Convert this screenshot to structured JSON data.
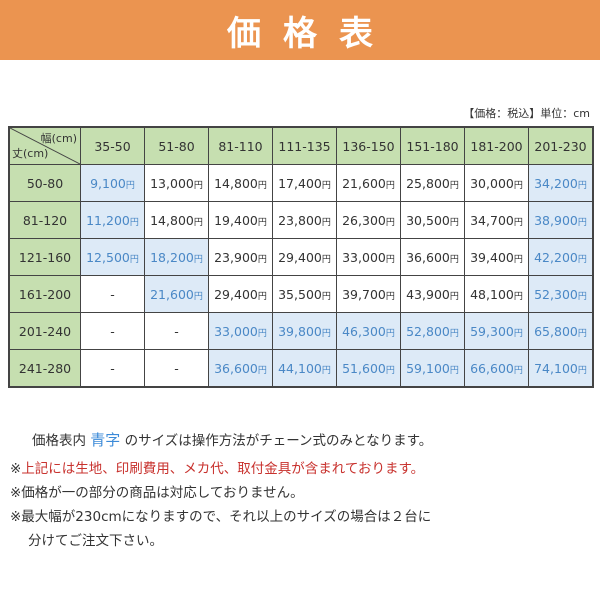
{
  "banner": {
    "title": "価格表"
  },
  "unit_note": "【価格：税込】単位：cm",
  "table": {
    "corner": {
      "width_label": "幅(cm)",
      "height_label": "丈(cm)"
    },
    "columns": [
      "35-50",
      "51-80",
      "81-110",
      "111-135",
      "136-150",
      "151-180",
      "181-200",
      "201-230"
    ],
    "currency": "円",
    "rows": [
      {
        "label": "50-80",
        "cells": [
          {
            "v": "9,100",
            "blue": true
          },
          {
            "v": "13,000",
            "blue": false
          },
          {
            "v": "14,800",
            "blue": false
          },
          {
            "v": "17,400",
            "blue": false
          },
          {
            "v": "21,600",
            "blue": false
          },
          {
            "v": "25,800",
            "blue": false
          },
          {
            "v": "30,000",
            "blue": false
          },
          {
            "v": "34,200",
            "blue": true
          }
        ]
      },
      {
        "label": "81-120",
        "cells": [
          {
            "v": "11,200",
            "blue": true
          },
          {
            "v": "14,800",
            "blue": false
          },
          {
            "v": "19,400",
            "blue": false
          },
          {
            "v": "23,800",
            "blue": false
          },
          {
            "v": "26,300",
            "blue": false
          },
          {
            "v": "30,500",
            "blue": false
          },
          {
            "v": "34,700",
            "blue": false
          },
          {
            "v": "38,900",
            "blue": true
          }
        ]
      },
      {
        "label": "121-160",
        "cells": [
          {
            "v": "12,500",
            "blue": true
          },
          {
            "v": "18,200",
            "blue": true
          },
          {
            "v": "23,900",
            "blue": false
          },
          {
            "v": "29,400",
            "blue": false
          },
          {
            "v": "33,000",
            "blue": false
          },
          {
            "v": "36,600",
            "blue": false
          },
          {
            "v": "39,400",
            "blue": false
          },
          {
            "v": "42,200",
            "blue": true
          }
        ]
      },
      {
        "label": "161-200",
        "cells": [
          {
            "v": "-",
            "blue": false
          },
          {
            "v": "21,600",
            "blue": true
          },
          {
            "v": "29,400",
            "blue": false
          },
          {
            "v": "35,500",
            "blue": false
          },
          {
            "v": "39,700",
            "blue": false
          },
          {
            "v": "43,900",
            "blue": false
          },
          {
            "v": "48,100",
            "blue": false
          },
          {
            "v": "52,300",
            "blue": true
          }
        ]
      },
      {
        "label": "201-240",
        "cells": [
          {
            "v": "-",
            "blue": false
          },
          {
            "v": "-",
            "blue": false
          },
          {
            "v": "33,000",
            "blue": true
          },
          {
            "v": "39,800",
            "blue": true
          },
          {
            "v": "46,300",
            "blue": true
          },
          {
            "v": "52,800",
            "blue": true
          },
          {
            "v": "59,300",
            "blue": true
          },
          {
            "v": "65,800",
            "blue": true
          }
        ]
      },
      {
        "label": "241-280",
        "cells": [
          {
            "v": "-",
            "blue": false
          },
          {
            "v": "-",
            "blue": false
          },
          {
            "v": "36,600",
            "blue": true
          },
          {
            "v": "44,100",
            "blue": true
          },
          {
            "v": "51,600",
            "blue": true
          },
          {
            "v": "59,100",
            "blue": true
          },
          {
            "v": "66,600",
            "blue": true
          },
          {
            "v": "74,100",
            "blue": true
          }
        ]
      }
    ]
  },
  "notes": {
    "first": {
      "prefix": "価格表内 ",
      "blue_text": "青字",
      "suffix": " のサイズは操作方法がチェーン式のみとなります。"
    },
    "second": {
      "mark": "※",
      "red_text": "上記には生地、印刷費用、メカ代、取付金具が含まれております。"
    },
    "third": "※価格が一の部分の商品は対応しておりません。",
    "fourth": "※最大幅が230cmになりますので、それ以上のサイズの場合は２台に",
    "fifth": "分けてご注文下さい。"
  },
  "colors": {
    "banner": "#eb9450",
    "header_green": "#c6dfb0",
    "blue_cell": "#ddeaf7",
    "blue_text": "#4a88c6",
    "red_text": "#c8322e"
  }
}
